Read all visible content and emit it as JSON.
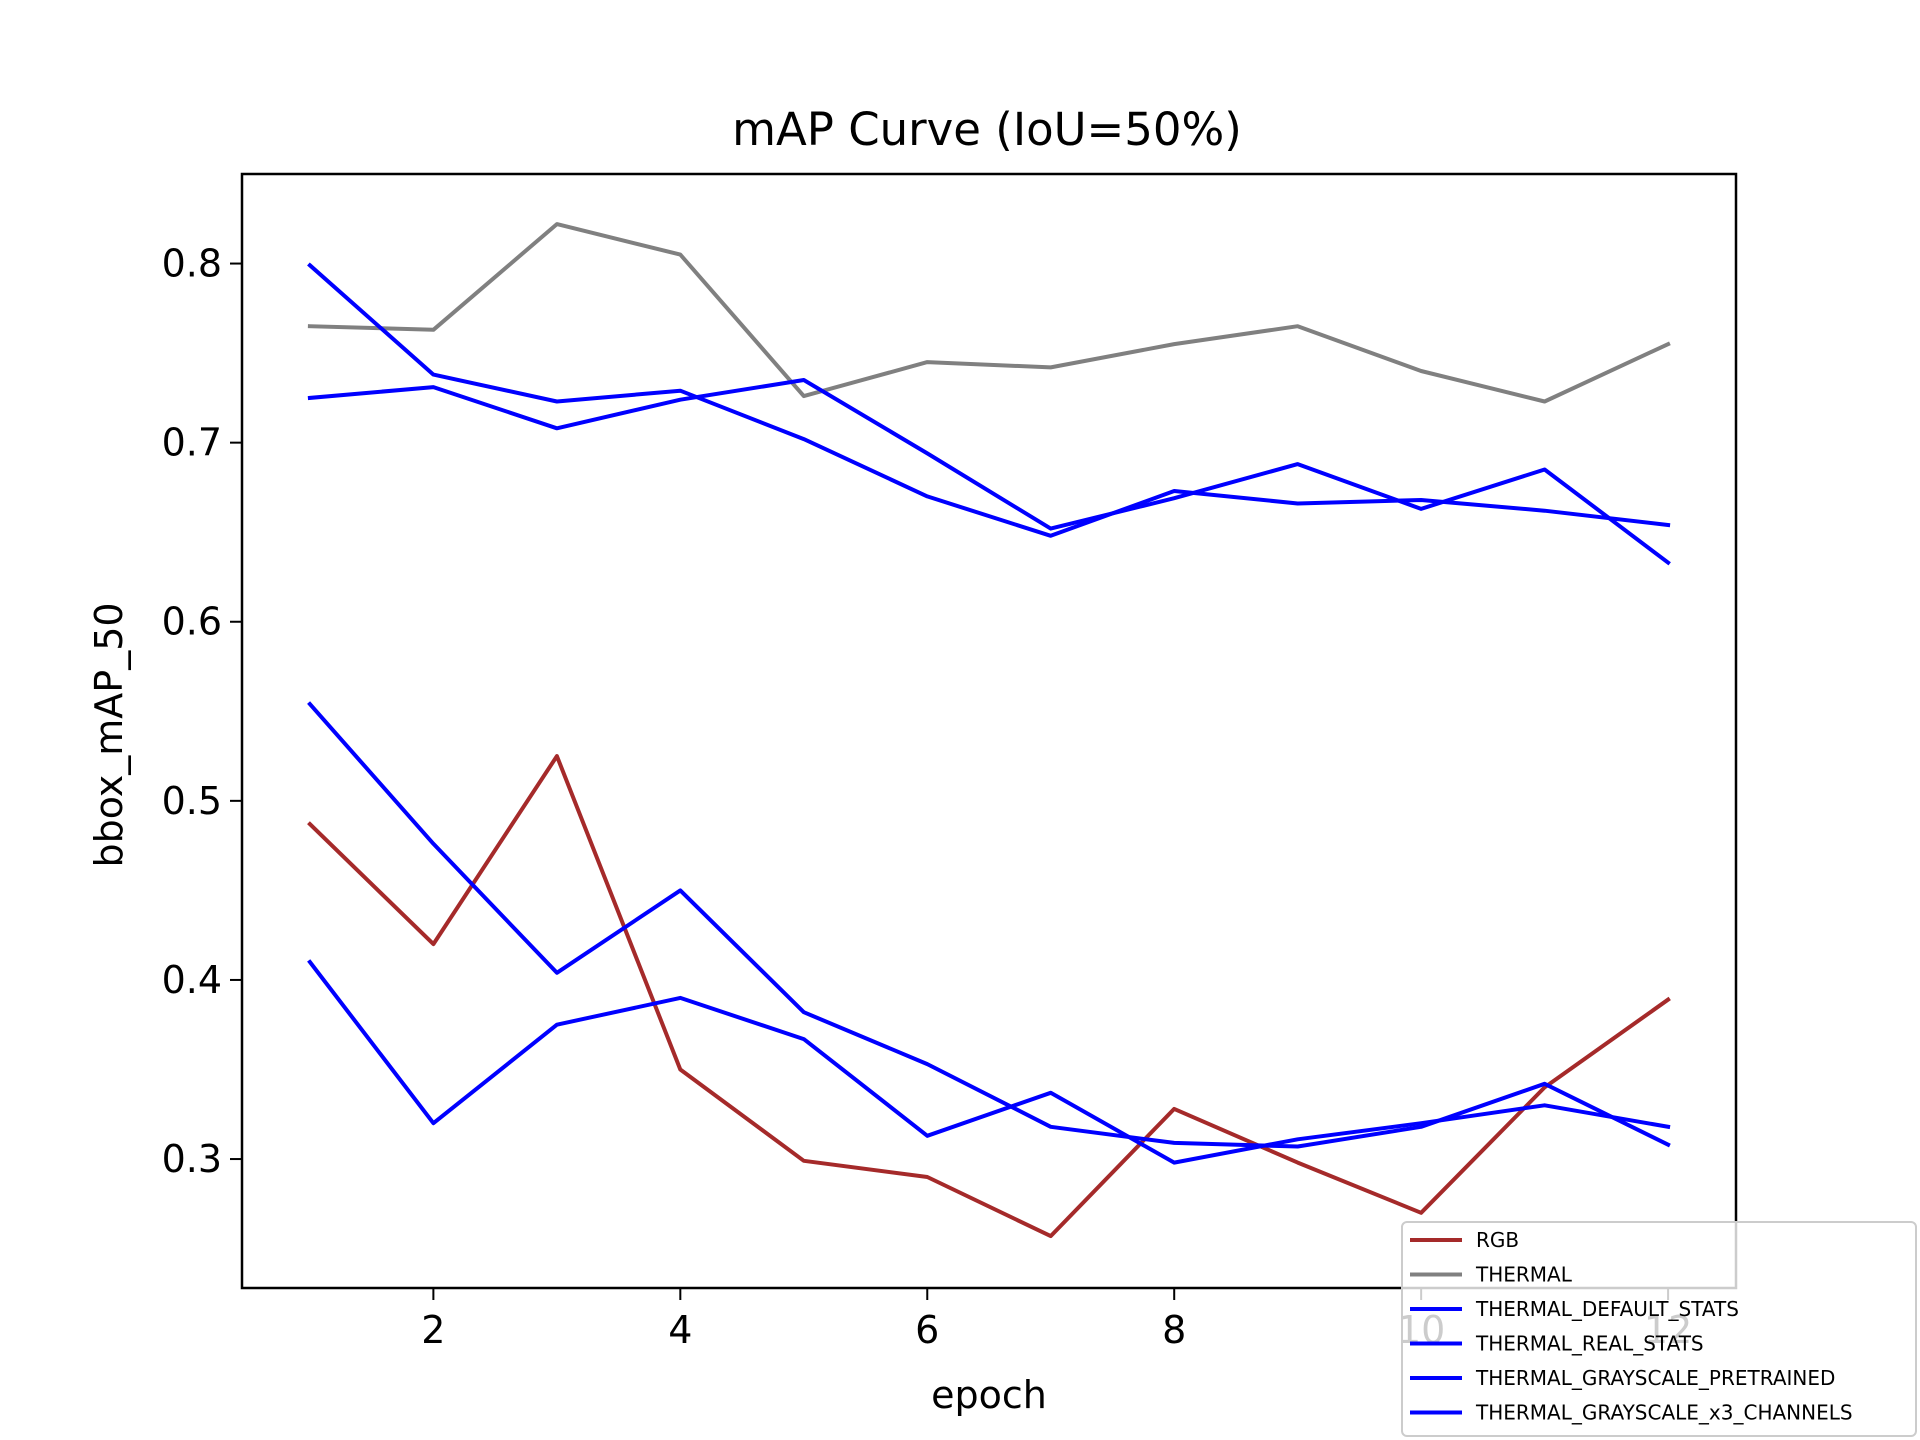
{
  "chart_data": {
    "type": "line",
    "title": "mAP Curve (IoU=50%)",
    "xlabel": "epoch",
    "ylabel": "bbox_mAP_50",
    "xlim": [
      0.45,
      12.55
    ],
    "ylim": [
      0.228,
      0.85
    ],
    "xticks": [
      2,
      4,
      6,
      8,
      10,
      12
    ],
    "yticks": [
      0.3,
      0.4,
      0.5,
      0.6,
      0.7,
      0.8
    ],
    "grid": false,
    "legend_position": "bottom-right",
    "x": [
      1,
      2,
      3,
      4,
      5,
      6,
      7,
      8,
      9,
      10,
      11,
      12
    ],
    "series": [
      {
        "name": "RGB",
        "color": "#a52a2a",
        "values": [
          0.487,
          0.42,
          0.525,
          0.35,
          0.299,
          0.29,
          0.257,
          0.328,
          0.298,
          0.27,
          0.34,
          0.389
        ]
      },
      {
        "name": "THERMAL",
        "color": "#808080",
        "values": [
          0.765,
          0.763,
          0.822,
          0.805,
          0.726,
          0.745,
          0.742,
          0.755,
          0.765,
          0.74,
          0.723,
          0.755
        ]
      },
      {
        "name": "THERMAL_DEFAULT_STATS",
        "color": "#0000ff",
        "values": [
          0.799,
          0.738,
          0.723,
          0.729,
          0.702,
          0.67,
          0.648,
          0.673,
          0.666,
          0.668,
          0.662,
          0.654
        ]
      },
      {
        "name": "THERMAL_REAL_STATS",
        "color": "#0000ff",
        "values": [
          0.725,
          0.731,
          0.708,
          0.724,
          0.735,
          0.694,
          0.652,
          0.669,
          0.688,
          0.663,
          0.685,
          0.633
        ]
      },
      {
        "name": "THERMAL_GRAYSCALE_PRETRAINED",
        "color": "#0000ff",
        "values": [
          0.554,
          0.476,
          0.404,
          0.45,
          0.382,
          0.353,
          0.318,
          0.309,
          0.307,
          0.318,
          0.342,
          0.308
        ]
      },
      {
        "name": "THERMAL_GRAYSCALE_x3_CHANNELS",
        "color": "#0000ff",
        "values": [
          0.41,
          0.32,
          0.375,
          0.39,
          0.367,
          0.313,
          0.337,
          0.298,
          0.311,
          0.32,
          0.33,
          0.318
        ]
      }
    ]
  }
}
